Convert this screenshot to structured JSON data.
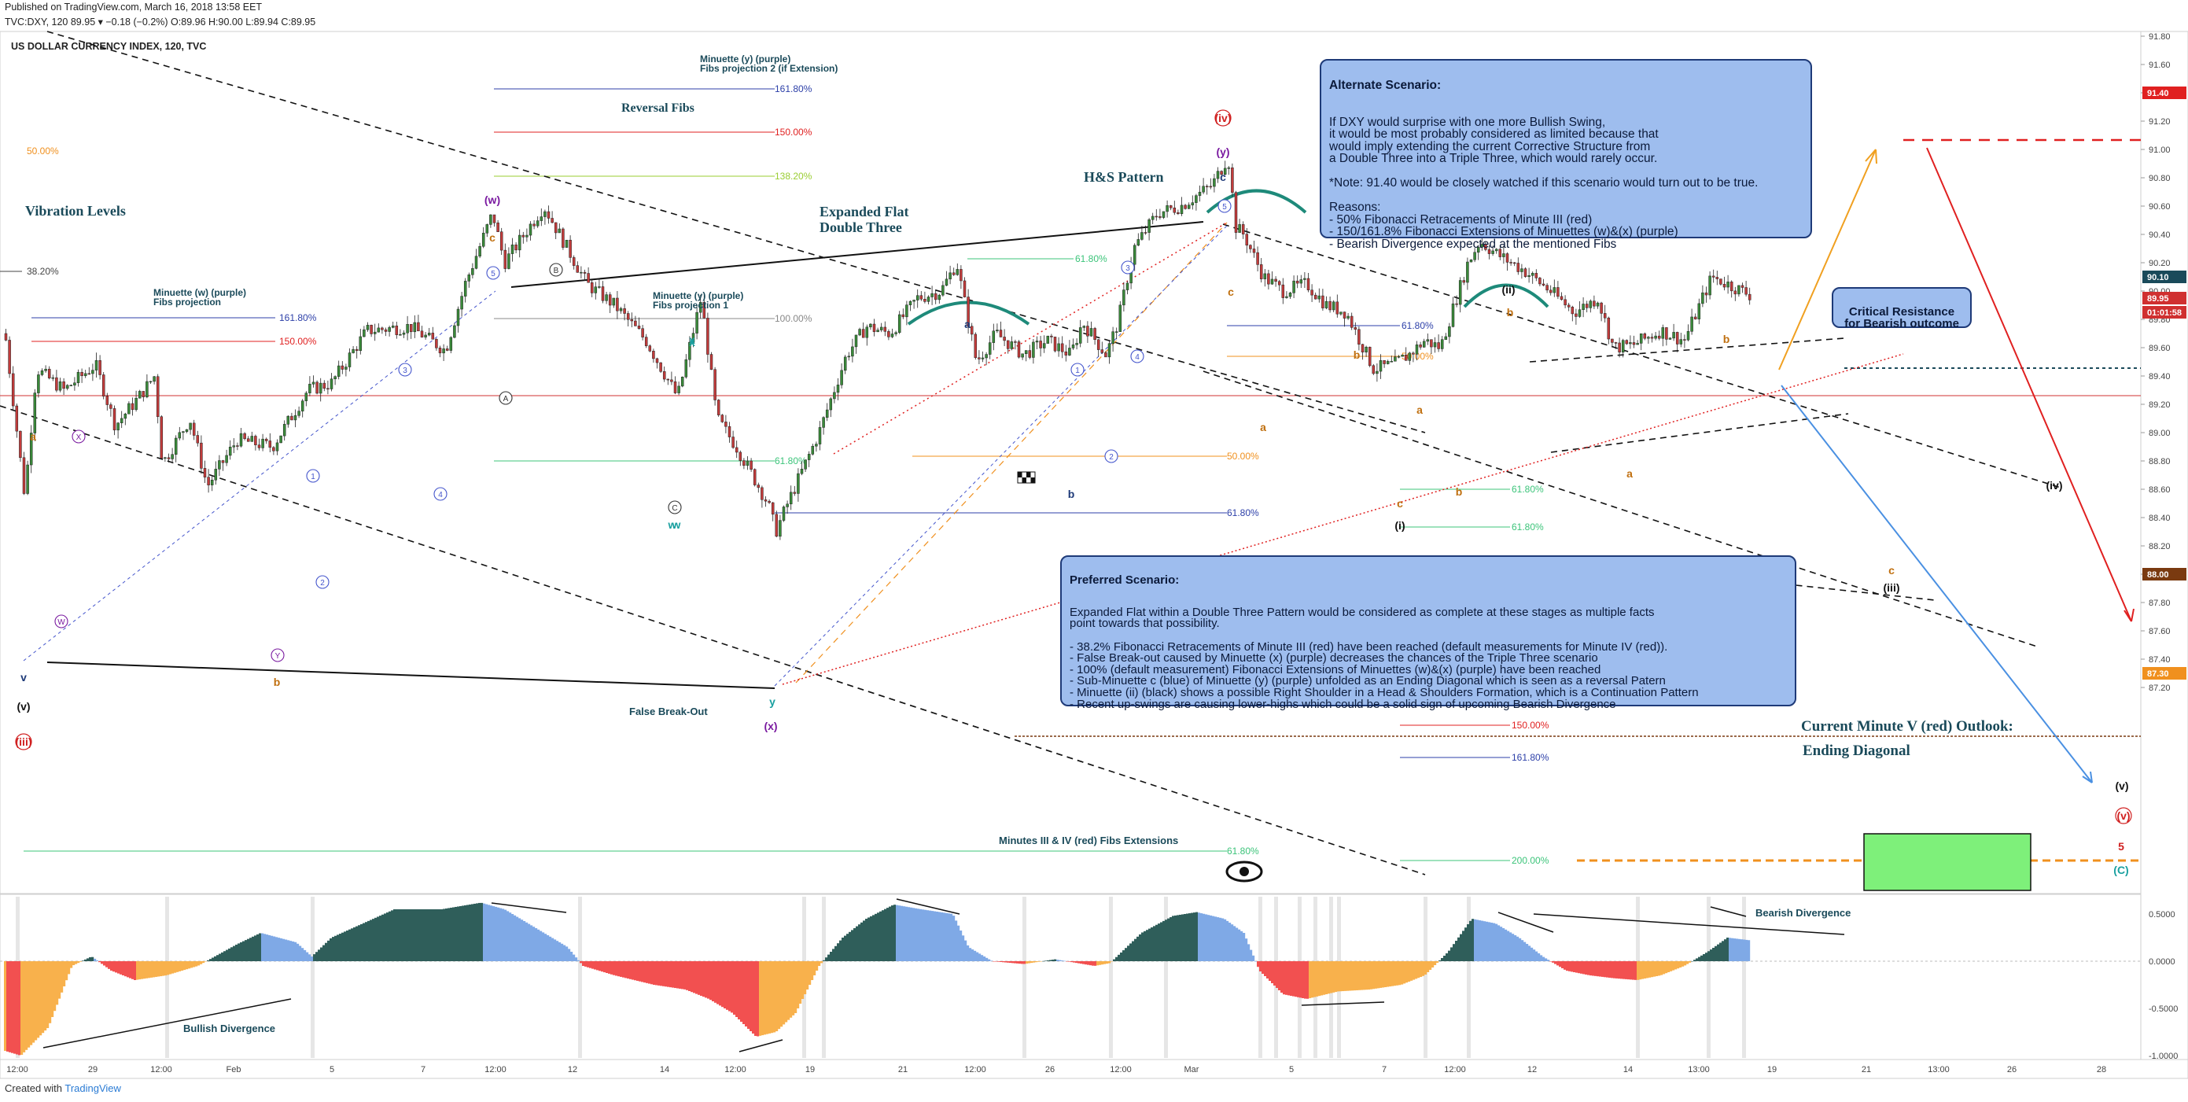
{
  "header": {
    "published": "Published on TradingView.com, March 16, 2018 13:58 EET",
    "ticker_line": "TVC:DXY, 120  O:89.95  H:89.96  L:89.94  C:89.95  O:89.96 H:90.00 L:89.94 C:89.95",
    "ticker": "TVC:DXY, 120",
    "ohlc": "89.95 ▾ −0.18 (−0.2%) O:89.96 H:90.00 L:89.94 C:89.95",
    "symbol_title": "US DOLLAR CURRENCY INDEX, 120, TVC"
  },
  "footer": {
    "created_with": "Created with",
    "brand": "TradingView"
  },
  "colors": {
    "up": "#3a8a3a",
    "down": "#c23b3b",
    "osc_pos": "#2f5e5a",
    "osc_pos2": "#7fa9e6",
    "osc_neg": "#f25050",
    "osc_neg2": "#f8b14c",
    "note_bg": "#9ebdee",
    "note_border": "#1e3a78"
  },
  "notes": {
    "alternate": {
      "title": "Alternate Scenario:",
      "body": "If DXY would surprise with one more Bullish Swing,\nit would be most probably considered as limited because that\nwould imply extending the current Corrective Structure from\na Double Three into a Triple Three, which would rarely occur.\n\n*Note: 91.40 would be closely watched if this scenario would turn out to be true.\n\nReasons:\n- 50% Fibonacci Retracements of Minute III (red)\n- 150/161.8% Fibonacci Extensions of Minuettes (w)&(x) (purple)\n- Bearish Divergence expected at the mentioned Fibs"
    },
    "preferred": {
      "title": "Preferred Scenario:",
      "body": "Expanded Flat within a Double Three Pattern would be considered as complete at these stages as multiple facts\npoint towards that possibility.\n\n- 38.2% Fibonacci Retracements of Minute III (red) have been reached (default measurements for Minute IV (red)).\n- False Break-out caused by Minuette (x) (purple) decreases the chances of the Triple Three scenario\n- 100% (default measurement) Fibonacci Extensions of Minuettes (w)&(x) (purple) have been reached\n- Sub-Minuette c (blue) of Minuette (y) (purple) unfolded as an Ending Diagonal which is seen as a reversal Patern\n- Minuette (ii) (black) shows a possible Right Shoulder in a Head & Shoulders Formation, which is a Continuation Pattern\n- Recent up-swings are causing lower-highs which could be a solid sign of upcoming Bearish Divergence"
    },
    "critical": {
      "text": "Critical Resistance\nfor Bearish outcome"
    }
  },
  "chart_data": {
    "type": "candlestick",
    "title": "US DOLLAR CURRENCY INDEX, 120, TVC",
    "ylim": [
      87.1,
      92.2
    ],
    "y_ticks": [
      "91.80",
      "91.60",
      "91.40",
      "91.20",
      "91.00",
      "90.80",
      "90.60",
      "90.40",
      "90.20",
      "90.00",
      "89.80",
      "89.60",
      "89.40",
      "89.20",
      "89.00",
      "88.80",
      "88.60",
      "88.40",
      "88.20",
      "88.00",
      "87.80",
      "87.60",
      "87.40",
      "87.20"
    ],
    "x_ticks": [
      "12:00",
      "29",
      "12:00",
      "Feb",
      "5",
      "7",
      "12:00",
      "12",
      "14",
      "12:00",
      "19",
      "21",
      "12:00",
      "26",
      "12:00",
      "Mar",
      "5",
      "7",
      "12:00",
      "12",
      "14",
      "13:00",
      "19",
      "21",
      "13:00",
      "26",
      "28"
    ],
    "price_labels": [
      {
        "text": "91.40",
        "value": 91.4,
        "color": "#e02020"
      },
      {
        "text": "90.10",
        "value": 90.1,
        "color": "#1a4a5a"
      },
      {
        "text": "89.95",
        "value": 89.95,
        "color": "#d03030"
      },
      {
        "text": "01:01:58",
        "value": 89.85,
        "color": "#d03030"
      },
      {
        "text": "88.00",
        "value": 88.0,
        "color": "#7a3a10"
      },
      {
        "text": "87.30",
        "value": 87.3,
        "color": "#f0901e"
      }
    ],
    "oscillator": {
      "ticks": [
        "0.5000",
        "0.0000",
        "-0.5000",
        "-1.0000"
      ],
      "labels": [
        "Bullish Divergence",
        "Bearish Divergence"
      ]
    },
    "annotations": {
      "titles": [
        "Vibration Levels",
        "Reversal Fibs",
        "Expanded Flat\nDouble Three",
        "H&S Pattern",
        "False Break-Out",
        "Current Minute V (red) Outlook:",
        "Ending Diagonal",
        "Minutes III & IV (red) Fibs Extensions"
      ],
      "fib_labels": [
        "Minuette (y) (purple)\nFibs projection 2 (if Extension)",
        "Minuette (w) (purple)\nFibs projection",
        "Minuette (y) (purple)\nFibs projection 1"
      ],
      "levels": [
        "50.00%",
        "38.20%",
        "161.80%",
        "150.00%",
        "161.80%",
        "150.00%",
        "138.20%",
        "100.00%",
        "61.80%",
        "61.80%",
        "61.80%",
        "50.00%",
        "61.80%",
        "50.00%",
        "61.80%",
        "61.80%",
        "150.00%",
        "161.80%",
        "200.00%",
        "61.80%"
      ],
      "waves": [
        "(iv)",
        "(y)",
        "c",
        "(w)",
        "c",
        "x",
        "w",
        "(x)",
        "y",
        "a",
        "b",
        "(ii)",
        "(i)",
        "(iii)",
        "(iv)",
        "(v)",
        "(v)",
        "5",
        "(C)",
        "(v)",
        "(iii)",
        "v",
        "a",
        "b",
        "c",
        "a",
        "b",
        "c",
        "b",
        "a",
        "b",
        "c",
        "a",
        "b",
        "x",
        "w"
      ]
    }
  }
}
